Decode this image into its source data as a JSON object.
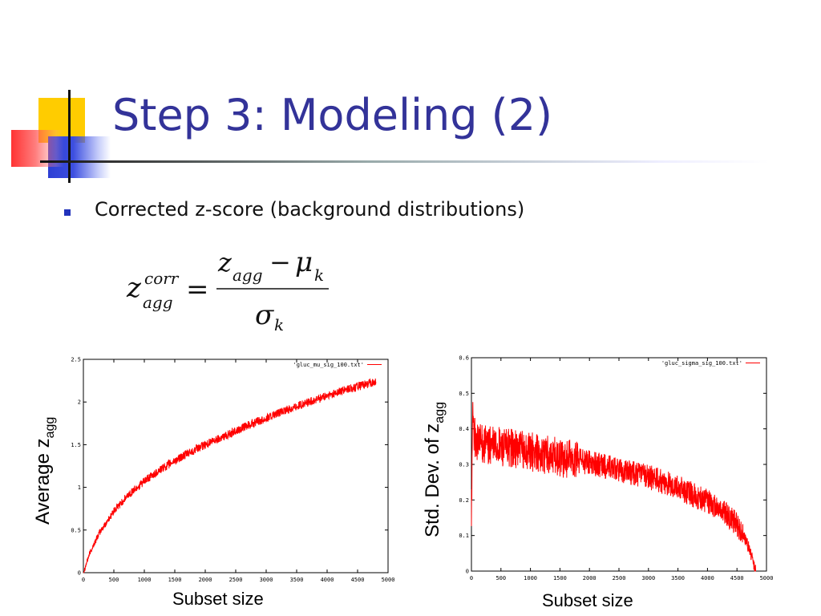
{
  "slide": {
    "title": "Step 3: Modeling (2)",
    "bullet": "Corrected z-score (background distributions)",
    "accent_color": "#333399"
  },
  "formula": {
    "lhs_base": "z",
    "lhs_sup": "corr",
    "lhs_sub": "agg",
    "equals": "=",
    "num_z": "z",
    "num_z_sub": "agg",
    "minus": "−",
    "num_mu": "μ",
    "num_mu_sub": "k",
    "den_sigma": "σ",
    "den_sub": "k"
  },
  "chart_data": [
    {
      "type": "line",
      "legend": "'gluc_mu_sig_100.txt'",
      "legend_placement": "top-right",
      "series_color": "#ff0000",
      "ylabel_main": "Average z",
      "ylabel_sub": "agg",
      "xlabel": "Subset size",
      "xlim": [
        0,
        5000
      ],
      "ylim": [
        0,
        2.5
      ],
      "xticks": [
        "0",
        "500",
        "1000",
        "1500",
        "2000",
        "2500",
        "3000",
        "3500",
        "4000",
        "4500",
        "5000"
      ],
      "yticks": [
        "0",
        "0.5",
        "1",
        "1.5",
        "2",
        "2.5"
      ],
      "x": [
        0,
        100,
        250,
        500,
        750,
        1000,
        1250,
        1500,
        1750,
        2000,
        2250,
        2500,
        2750,
        3000,
        3250,
        3500,
        3750,
        4000,
        4250,
        4500,
        4800
      ],
      "y": [
        0.0,
        0.22,
        0.45,
        0.72,
        0.92,
        1.07,
        1.2,
        1.31,
        1.41,
        1.5,
        1.58,
        1.66,
        1.74,
        1.81,
        1.88,
        1.95,
        2.01,
        2.07,
        2.13,
        2.18,
        2.24
      ],
      "noise": 0.05
    },
    {
      "type": "line",
      "legend": "'gluc_sigma_sig_100.txt'",
      "legend_placement": "top-right",
      "series_color": "#ff0000",
      "ylabel_main": "Std. Dev. of z",
      "ylabel_sub": "agg",
      "xlabel": "Subset size",
      "xlim": [
        0,
        5000
      ],
      "ylim": [
        0,
        0.6
      ],
      "xticks": [
        "0",
        "500",
        "1000",
        "1500",
        "2000",
        "2500",
        "3000",
        "3500",
        "4000",
        "4500",
        "5000"
      ],
      "yticks": [
        "0",
        "0.1",
        "0.2",
        "0.3",
        "0.4",
        "0.5",
        "0.6"
      ],
      "x": [
        0,
        25,
        50,
        100,
        250,
        500,
        750,
        1000,
        1500,
        2000,
        2500,
        3000,
        3500,
        4000,
        4250,
        4500,
        4650,
        4750,
        4800,
        4820
      ],
      "y": [
        0.18,
        0.45,
        0.38,
        0.36,
        0.355,
        0.35,
        0.345,
        0.335,
        0.32,
        0.305,
        0.285,
        0.265,
        0.235,
        0.195,
        0.17,
        0.13,
        0.09,
        0.04,
        0.01,
        0.0
      ],
      "noise": 0.035
    }
  ]
}
